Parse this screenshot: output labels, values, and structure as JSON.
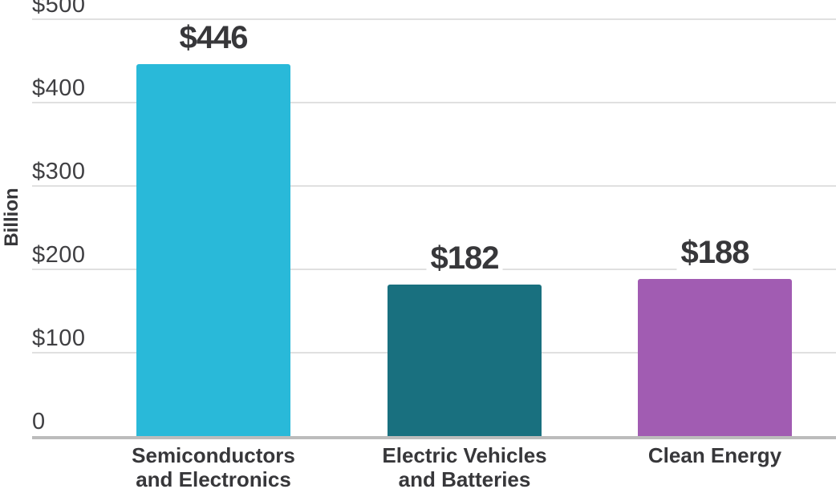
{
  "chart_data": {
    "type": "bar",
    "title": "",
    "xlabel": "",
    "ylabel": "Billion",
    "ylim": [
      0,
      500
    ],
    "grid": true,
    "legend": false,
    "yticks": [
      {
        "value": 500,
        "label": "$500"
      },
      {
        "value": 400,
        "label": "$400"
      },
      {
        "value": 300,
        "label": "$300"
      },
      {
        "value": 200,
        "label": "$200"
      },
      {
        "value": 100,
        "label": "$100"
      },
      {
        "value": 0,
        "label": "0"
      }
    ],
    "categories": [
      "Semiconductors\nand Electronics",
      "Electric Vehicles\nand Batteries",
      "Clean Energy"
    ],
    "values": [
      446,
      182,
      188
    ],
    "value_labels": [
      "$446",
      "$182",
      "$188"
    ],
    "bar_colors": [
      "#29B9D9",
      "#19707F",
      "#A15CB2"
    ]
  },
  "colors": {
    "label_text": "#37373A",
    "tick_text": "#3F3F42",
    "gridline": "#E0E0E0",
    "axis_line": "#BCBCBC"
  }
}
